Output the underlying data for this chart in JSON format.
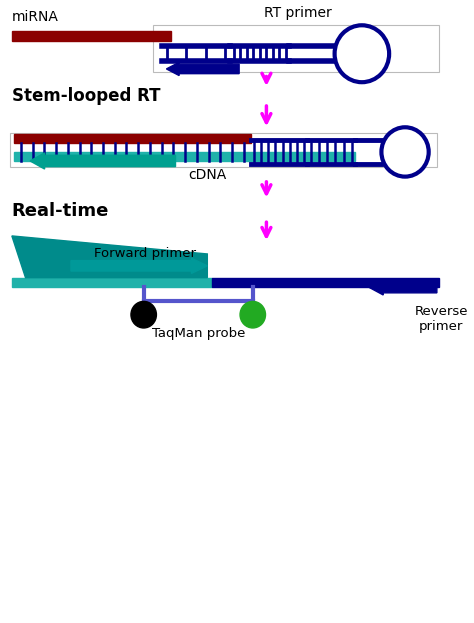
{
  "fig_width": 4.74,
  "fig_height": 6.23,
  "dpi": 100,
  "bg_color": "#ffffff",
  "mirna_color": "#8B0000",
  "dark_blue": "#00008B",
  "teal": "#008B8B",
  "teal_bright": "#20B2AA",
  "green_col": "#22AA22",
  "magenta": "#FF00FF",
  "gray": "#aaaaaa",
  "blue_purple": "#5555CC",
  "section1_label": "miRNA",
  "rt_primer_label": "RT primer",
  "section2_label": "Stem-looped RT",
  "cdna_label": "cDNA",
  "section3_label": "Real-time",
  "forward_label": "Forward primer",
  "taqman_label": "TaqMan probe",
  "reverse_label": "Reverse\nprimer",
  "xlim": [
    0,
    10
  ],
  "ylim": [
    0,
    13
  ]
}
